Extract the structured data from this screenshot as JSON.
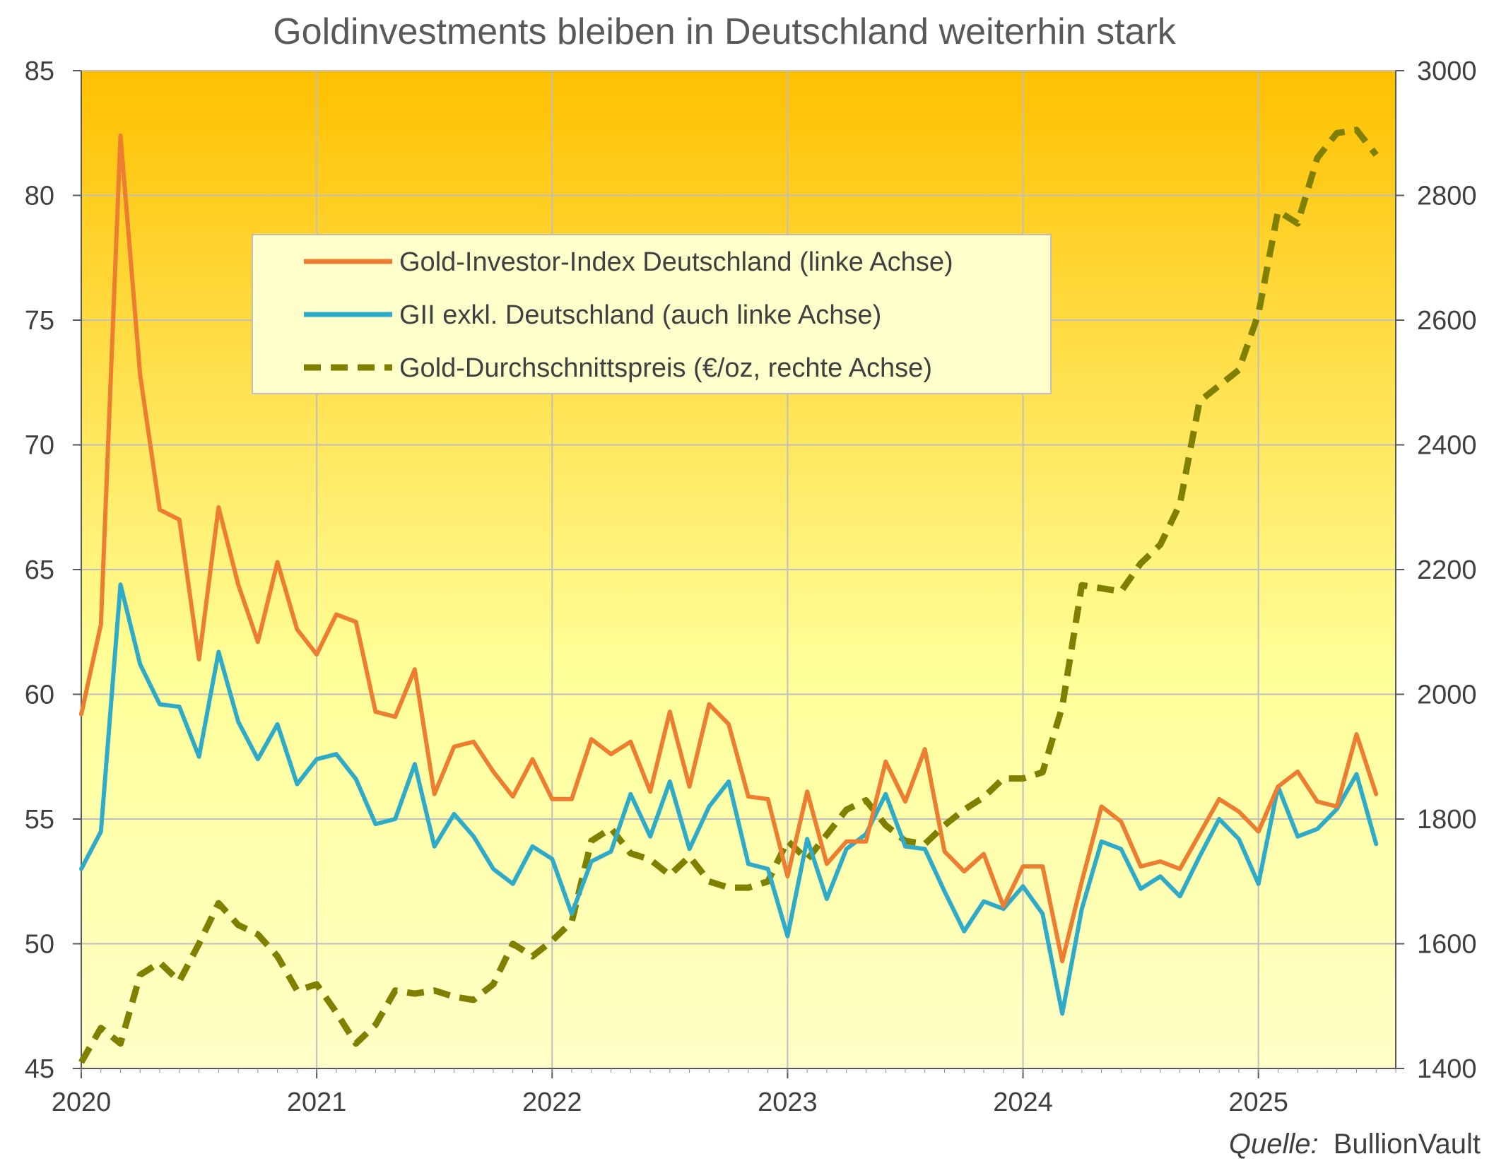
{
  "chart_data": {
    "type": "line",
    "title": "Goldinvestments bleiben in Deutschland weiterhin stark",
    "source_label": "Quelle:",
    "source_name": "BullionVault",
    "x_tick_labels": [
      "2020",
      "2021",
      "2022",
      "2023",
      "2024",
      "2025"
    ],
    "x_start": "2020-01",
    "x_end": "2025-08",
    "y_left": {
      "min": 45,
      "max": 85,
      "ticks": [
        "45",
        "50",
        "55",
        "60",
        "65",
        "70",
        "75",
        "80",
        "85"
      ]
    },
    "y_right": {
      "min": 1400,
      "max": 3000,
      "ticks": [
        "1400",
        "1600",
        "1800",
        "2000",
        "2200",
        "2400",
        "2600",
        "2800",
        "3000"
      ]
    },
    "grid": true,
    "legend_position": "top-center",
    "background_gradient": {
      "top": "#FFC000",
      "middle": "#FFFF99",
      "bottom": "#FFFFC8"
    },
    "months": [
      "2020-01",
      "2020-02",
      "2020-03",
      "2020-04",
      "2020-05",
      "2020-06",
      "2020-07",
      "2020-08",
      "2020-09",
      "2020-10",
      "2020-11",
      "2020-12",
      "2021-01",
      "2021-02",
      "2021-03",
      "2021-04",
      "2021-05",
      "2021-06",
      "2021-07",
      "2021-08",
      "2021-09",
      "2021-10",
      "2021-11",
      "2021-12",
      "2022-01",
      "2022-02",
      "2022-03",
      "2022-04",
      "2022-05",
      "2022-06",
      "2022-07",
      "2022-08",
      "2022-09",
      "2022-10",
      "2022-11",
      "2022-12",
      "2023-01",
      "2023-02",
      "2023-03",
      "2023-04",
      "2023-05",
      "2023-06",
      "2023-07",
      "2023-08",
      "2023-09",
      "2023-10",
      "2023-11",
      "2023-12",
      "2024-01",
      "2024-02",
      "2024-03",
      "2024-04",
      "2024-05",
      "2024-06",
      "2024-07",
      "2024-08",
      "2024-09",
      "2024-10",
      "2024-11",
      "2024-12",
      "2025-01",
      "2025-02",
      "2025-03",
      "2025-04",
      "2025-05",
      "2025-06",
      "2025-07"
    ],
    "series": [
      {
        "name": "Gold-Investor-Index Deutschland (linke Achse)",
        "axis": "left",
        "color": "#ED7D31",
        "style": "solid",
        "values": [
          59.2,
          62.8,
          82.4,
          72.8,
          67.4,
          67.0,
          61.4,
          67.5,
          64.4,
          62.1,
          65.3,
          62.6,
          61.6,
          63.2,
          62.9,
          59.3,
          59.1,
          61.0,
          56.0,
          57.9,
          58.1,
          56.9,
          55.9,
          57.4,
          55.8,
          55.8,
          58.2,
          57.6,
          58.1,
          56.1,
          59.3,
          56.3,
          59.6,
          58.8,
          55.9,
          55.8,
          52.7,
          56.1,
          53.2,
          54.1,
          54.1,
          57.3,
          55.7,
          57.8,
          53.7,
          52.9,
          53.6,
          51.5,
          53.1,
          53.1,
          49.3,
          52.5,
          55.5,
          54.9,
          53.1,
          53.3,
          53.0,
          54.4,
          55.8,
          55.3,
          54.5,
          56.3,
          56.9,
          55.7,
          55.5,
          58.4,
          56.0
        ]
      },
      {
        "name": "GII exkl. Deutschland (auch linke Achse)",
        "axis": "left",
        "color": "#2EABC9",
        "style": "solid",
        "values": [
          53.0,
          54.5,
          64.4,
          61.2,
          59.6,
          59.5,
          57.5,
          61.7,
          58.9,
          57.4,
          58.8,
          56.4,
          57.4,
          57.6,
          56.6,
          54.8,
          55.0,
          57.2,
          53.9,
          55.2,
          54.3,
          53.0,
          52.4,
          53.9,
          53.4,
          51.2,
          53.3,
          53.7,
          56.0,
          54.3,
          56.5,
          53.8,
          55.5,
          56.5,
          53.2,
          53.0,
          50.3,
          54.2,
          51.8,
          53.8,
          54.4,
          56.0,
          53.9,
          53.8,
          52.1,
          50.5,
          51.7,
          51.4,
          52.3,
          51.2,
          47.2,
          51.4,
          54.1,
          53.8,
          52.2,
          52.7,
          51.9,
          53.5,
          55.0,
          54.2,
          52.4,
          56.3,
          54.3,
          54.6,
          55.4,
          56.8,
          54.0
        ]
      },
      {
        "name": "Gold-Durchschnittspreis (€/oz, rechte Achse)",
        "axis": "right",
        "color": "#7F7F00",
        "style": "dashed",
        "values": [
          1410,
          1465,
          1440,
          1550,
          1570,
          1540,
          1600,
          1665,
          1630,
          1615,
          1580,
          1525,
          1535,
          1490,
          1440,
          1470,
          1525,
          1520,
          1525,
          1515,
          1510,
          1535,
          1600,
          1580,
          1605,
          1635,
          1765,
          1785,
          1745,
          1735,
          1710,
          1740,
          1700,
          1690,
          1690,
          1700,
          1765,
          1735,
          1775,
          1815,
          1830,
          1790,
          1765,
          1760,
          1790,
          1815,
          1835,
          1865,
          1865,
          1875,
          1980,
          2175,
          2170,
          2165,
          2210,
          2240,
          2305,
          2470,
          2495,
          2520,
          2610,
          2775,
          2755,
          2860,
          2900,
          2905,
          2865
        ]
      }
    ]
  }
}
